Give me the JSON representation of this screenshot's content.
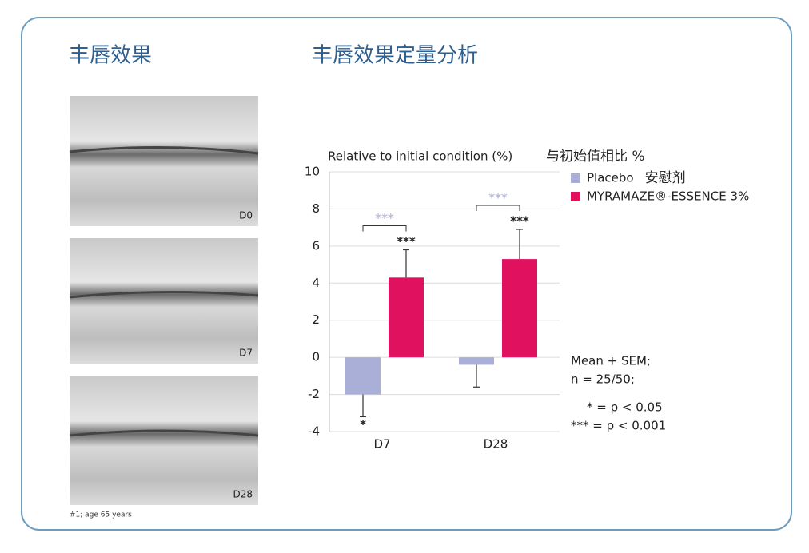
{
  "left_panel": {
    "title": "丰唇效果",
    "photo_labels": [
      "D0",
      "D7",
      "D28"
    ],
    "caption": "#1; age 65 years"
  },
  "chart_data": {
    "type": "bar",
    "title": "丰唇效果定量分析",
    "y_label": "Relative to initial condition (%)",
    "y_label_cn": "与初始值相比 %",
    "categories": [
      "D7",
      "D28"
    ],
    "series": [
      {
        "name": "Placebo",
        "name_cn": "安慰剂",
        "color": "#a9afd6",
        "values": [
          -2.0,
          -0.4
        ],
        "errors": [
          1.2,
          1.2
        ],
        "error_direction": "down",
        "significance": [
          "*",
          null
        ]
      },
      {
        "name": "MYRAMAZE®-ESSENCE 3%",
        "color": "#e0115f",
        "values": [
          4.3,
          5.3
        ],
        "errors": [
          1.5,
          1.6
        ],
        "error_direction": "up",
        "significance": [
          "***",
          "***"
        ]
      }
    ],
    "comparison_labels": [
      "***",
      "***"
    ],
    "ylim": [
      -4,
      10
    ],
    "yticks": [
      -4,
      -2,
      0,
      2,
      4,
      6,
      8,
      10
    ],
    "grid": true,
    "notes": [
      "Mean + SEM;",
      "n = 25/50;",
      "* = p < 0.05",
      "*** = p < 0.001"
    ]
  }
}
